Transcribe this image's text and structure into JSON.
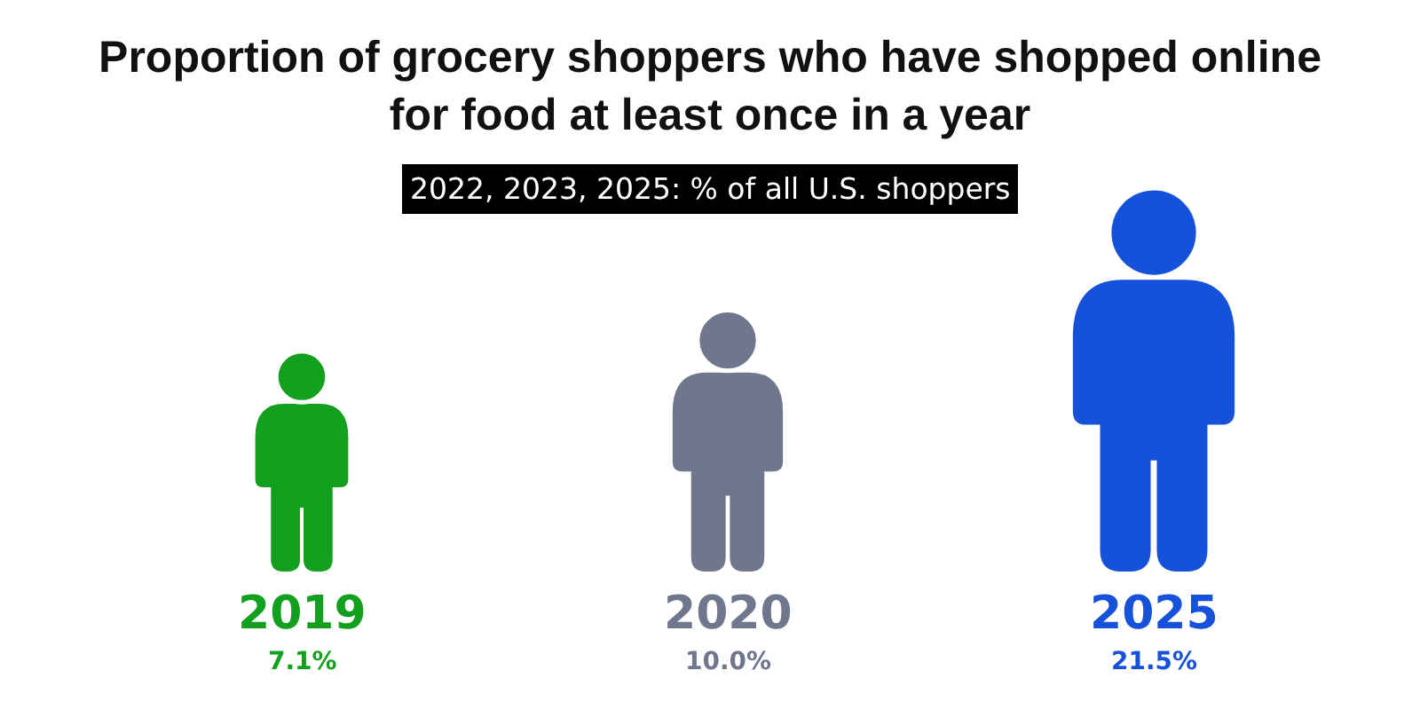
{
  "chart_data": {
    "type": "other",
    "title": "Proportion of grocery shoppers who have shopped online for food at least once in a year",
    "subtitle": "2022, 2023, 2025: % of all U.S. shoppers",
    "categories": [
      "2019",
      "2020",
      "2025"
    ],
    "values": [
      7.1,
      10.0,
      21.5
    ],
    "value_labels": [
      "7.1%",
      "10.0%",
      "21.5%"
    ],
    "colors": [
      "#13a01e",
      "#6e778c",
      "#1652d9"
    ]
  }
}
